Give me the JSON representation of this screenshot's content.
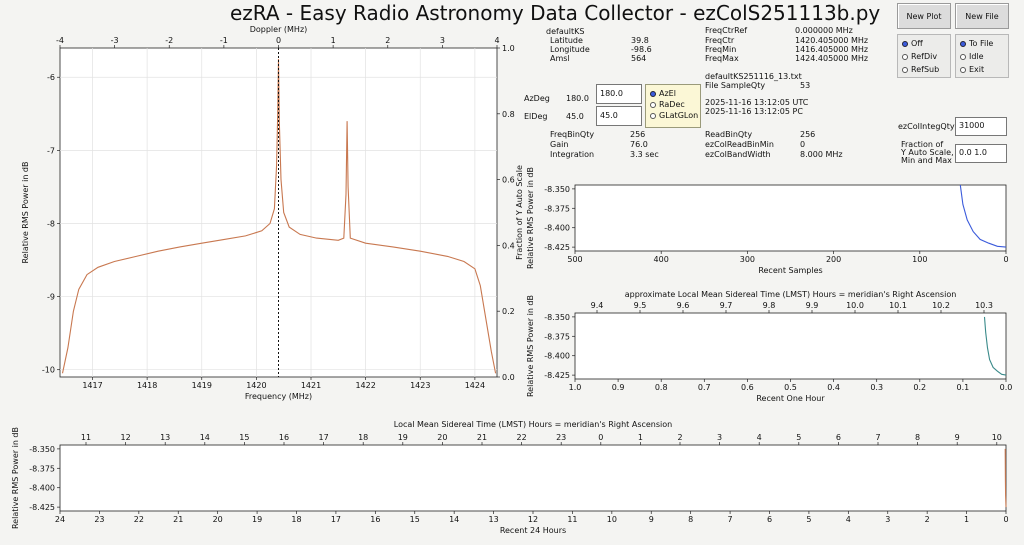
{
  "window": {
    "title": "ezRA - Easy Radio Astronomy Data Collector - ezColS251113b.py"
  },
  "buttons": {
    "new_plot": "New Plot",
    "new_file": "New File"
  },
  "ref_group": {
    "options": [
      "Off",
      "RefDiv",
      "RefSub"
    ],
    "selected": 0
  },
  "file_group": {
    "options": [
      "To File",
      "Idle",
      "Exit"
    ],
    "selected": 0
  },
  "station": {
    "name": "defaultKS",
    "rows": [
      {
        "label": "Latitude",
        "value": "39.8"
      },
      {
        "label": "Longitude",
        "value": "-98.6"
      },
      {
        "label": "Amsl",
        "value": "564"
      }
    ]
  },
  "freq_info": [
    {
      "label": "FreqCtrRef",
      "value": "0.000000  MHz"
    },
    {
      "label": "FreqCtr",
      "value": "1420.405000  MHz"
    },
    {
      "label": "FreqMin",
      "value": "1416.405000  MHz"
    },
    {
      "label": "FreqMax",
      "value": "1424.405000  MHz"
    }
  ],
  "file_info": {
    "filename": "defaultKS251116_13.txt",
    "sample_qty_label": "File SampleQty",
    "sample_qty": "53",
    "utc": "2025-11-16  13:12:05  UTC",
    "pc": "2025-11-16  13:12:05  PC"
  },
  "pointing": {
    "az_label": "AzDeg",
    "az_value": "180.0",
    "az_input": "180.0",
    "el_label": "ElDeg",
    "el_value": "45.0",
    "el_input": "45.0",
    "coord_options": [
      "AzEl",
      "RaDec",
      "GLatGLon"
    ],
    "coord_selected": 0
  },
  "params_left": [
    {
      "label": "FreqBinQty",
      "value": "256"
    },
    {
      "label": "Gain",
      "value": "76.0"
    },
    {
      "label": "Integration",
      "value": "3.3  sec"
    }
  ],
  "params_right": [
    {
      "label": "ReadBinQty",
      "value": "256"
    },
    {
      "label": "ezColReadBinMin",
      "value": "0"
    },
    {
      "label": "ezColBandWidth",
      "value": "8.000  MHz"
    }
  ],
  "integ": {
    "label": "ezColIntegQty",
    "value": "31000"
  },
  "autoscale": {
    "lines": [
      "Fraction of",
      "Y Auto Scale,",
      "Min and Max"
    ],
    "value": "0.0   1.0"
  },
  "spectrum_chart": {
    "type": "line",
    "title": "",
    "xlabel": "Frequency (MHz)",
    "x2label": "Doppler (MHz)",
    "ylabel": "Relative RMS Power in dB",
    "y2label": "Fraction of Y Auto Scale",
    "xlim": [
      1416.405,
      1424.405
    ],
    "ylim": [
      -10.1,
      -5.6
    ],
    "xticks": [
      "1417",
      "1418",
      "1419",
      "1420",
      "1421",
      "1422",
      "1423",
      "1424"
    ],
    "x2ticks": [
      "-4",
      "-3",
      "-2",
      "-1",
      "0",
      "1",
      "2",
      "3",
      "4"
    ],
    "yticks": [
      "-10",
      "-9",
      "-8",
      "-7",
      "-6"
    ],
    "y2ticks": [
      "0.0",
      "0.2",
      "0.4",
      "0.6",
      "0.8",
      "1.0"
    ],
    "line_color": "#c87850",
    "marker_x": 1420.405,
    "points": [
      [
        1416.45,
        -10.05
      ],
      [
        1416.55,
        -9.7
      ],
      [
        1416.65,
        -9.2
      ],
      [
        1416.75,
        -8.9
      ],
      [
        1416.9,
        -8.7
      ],
      [
        1417.1,
        -8.6
      ],
      [
        1417.4,
        -8.52
      ],
      [
        1417.8,
        -8.45
      ],
      [
        1418.2,
        -8.38
      ],
      [
        1418.6,
        -8.32
      ],
      [
        1419.0,
        -8.27
      ],
      [
        1419.4,
        -8.22
      ],
      [
        1419.8,
        -8.17
      ],
      [
        1420.1,
        -8.1
      ],
      [
        1420.25,
        -8.0
      ],
      [
        1420.33,
        -7.8
      ],
      [
        1420.37,
        -7.2
      ],
      [
        1420.39,
        -6.5
      ],
      [
        1420.405,
        -5.75
      ],
      [
        1420.42,
        -6.6
      ],
      [
        1420.45,
        -7.4
      ],
      [
        1420.5,
        -7.85
      ],
      [
        1420.6,
        -8.05
      ],
      [
        1420.8,
        -8.15
      ],
      [
        1421.1,
        -8.2
      ],
      [
        1421.5,
        -8.23
      ],
      [
        1421.6,
        -8.2
      ],
      [
        1421.64,
        -7.6
      ],
      [
        1421.66,
        -6.6
      ],
      [
        1421.68,
        -7.5
      ],
      [
        1421.72,
        -8.2
      ],
      [
        1422.0,
        -8.27
      ],
      [
        1422.5,
        -8.32
      ],
      [
        1423.0,
        -8.38
      ],
      [
        1423.5,
        -8.45
      ],
      [
        1423.8,
        -8.52
      ],
      [
        1424.0,
        -8.62
      ],
      [
        1424.1,
        -8.85
      ],
      [
        1424.2,
        -9.3
      ],
      [
        1424.3,
        -9.75
      ],
      [
        1424.38,
        -10.05
      ]
    ]
  },
  "recent_samples_chart": {
    "type": "line",
    "title": "",
    "xlabel": "Recent Samples",
    "ylabel": "Relative RMS Power in dB",
    "xlim": [
      500,
      0
    ],
    "ylim": [
      -8.43,
      -8.345
    ],
    "xticks": [
      "500",
      "400",
      "300",
      "200",
      "100",
      "0"
    ],
    "yticks": [
      "-8.350",
      "-8.375",
      "-8.400",
      "-8.425"
    ],
    "line_color": "#3b5bdb",
    "points": [
      [
        53,
        -8.345
      ],
      [
        50,
        -8.37
      ],
      [
        45,
        -8.39
      ],
      [
        38,
        -8.405
      ],
      [
        30,
        -8.415
      ],
      [
        20,
        -8.42
      ],
      [
        10,
        -8.424
      ],
      [
        0,
        -8.425
      ]
    ]
  },
  "one_hour_chart": {
    "type": "line",
    "title": "",
    "top_label": "approximate Local Mean Sidereal Time (LMST) Hours = meridian's Right Ascension",
    "xlabel": "Recent One Hour",
    "ylabel": "Relative RMS Power in dB",
    "xlim": [
      1.0,
      0.0
    ],
    "ylim": [
      -8.43,
      -8.345
    ],
    "xticks": [
      "1.0",
      "0.9",
      "0.8",
      "0.7",
      "0.6",
      "0.5",
      "0.4",
      "0.3",
      "0.2",
      "0.1",
      "0.0"
    ],
    "x2ticks": [
      "9.4",
      "9.5",
      "9.6",
      "9.7",
      "9.8",
      "9.9",
      "10.0",
      "10.1",
      "10.2",
      "10.3"
    ],
    "yticks": [
      "-8.350",
      "-8.375",
      "-8.400",
      "-8.425"
    ],
    "line_color": "#3a8a8a",
    "points": [
      [
        0.05,
        -8.35
      ],
      [
        0.047,
        -8.37
      ],
      [
        0.043,
        -8.39
      ],
      [
        0.038,
        -8.405
      ],
      [
        0.03,
        -8.415
      ],
      [
        0.02,
        -8.42
      ],
      [
        0.01,
        -8.424
      ],
      [
        0.0,
        -8.425
      ]
    ]
  },
  "day_chart": {
    "type": "line",
    "title": "",
    "top_label": "Local Mean Sidereal Time (LMST) Hours = meridian's Right Ascension",
    "xlabel": "Recent 24 Hours",
    "ylabel": "Relative RMS Power in dB",
    "xlim": [
      24,
      0
    ],
    "ylim": [
      -8.43,
      -8.345
    ],
    "xticks": [
      "24",
      "23",
      "22",
      "21",
      "20",
      "19",
      "18",
      "17",
      "16",
      "15",
      "14",
      "13",
      "12",
      "11",
      "10",
      "9",
      "8",
      "7",
      "6",
      "5",
      "4",
      "3",
      "2",
      "1",
      "0"
    ],
    "x2ticks": [
      "11",
      "12",
      "13",
      "14",
      "15",
      "16",
      "17",
      "18",
      "19",
      "20",
      "21",
      "22",
      "23",
      "0",
      "1",
      "2",
      "3",
      "4",
      "5",
      "6",
      "7",
      "8",
      "9",
      "10"
    ],
    "yticks": [
      "-8.350",
      "-8.375",
      "-8.400",
      "-8.425"
    ],
    "line_color": "#c87850",
    "points": [
      [
        0.02,
        -8.35
      ],
      [
        0.015,
        -8.39
      ],
      [
        0.01,
        -8.41
      ],
      [
        0.0,
        -8.425
      ]
    ]
  }
}
